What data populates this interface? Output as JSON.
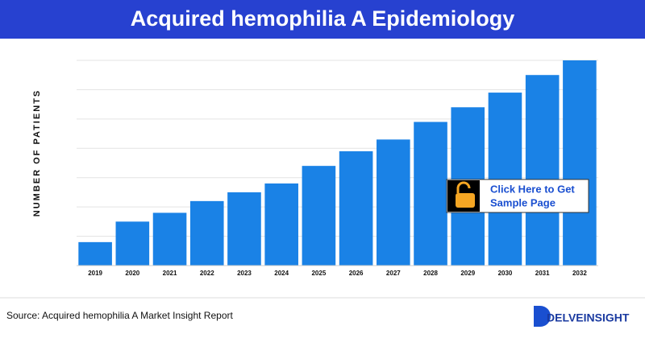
{
  "chart_data": {
    "type": "bar",
    "title": "Acquired hemophilia A Epidemiology",
    "y_label": "NUMBER OF PATIENTS",
    "categories": [
      "2019",
      "2020",
      "2021",
      "2022",
      "2023",
      "2024",
      "2025",
      "2026",
      "2027",
      "2028",
      "2029",
      "2030",
      "2031",
      "2032"
    ],
    "values": [
      0.8,
      1.5,
      1.8,
      2.2,
      2.5,
      2.8,
      3.4,
      3.9,
      4.3,
      4.9,
      5.4,
      5.9,
      6.5,
      7.0
    ],
    "color": "#1a82e6",
    "ylim": [
      0,
      7
    ],
    "gridlines": [
      1,
      2,
      3,
      4,
      5,
      6,
      7
    ],
    "grid": true
  },
  "source": "Source: Acquired hemophilia A Market Insight Report",
  "cta": {
    "line1": "Click Here to Get",
    "line2": "Sample Page"
  },
  "logo": "DELVEINSIGHT"
}
